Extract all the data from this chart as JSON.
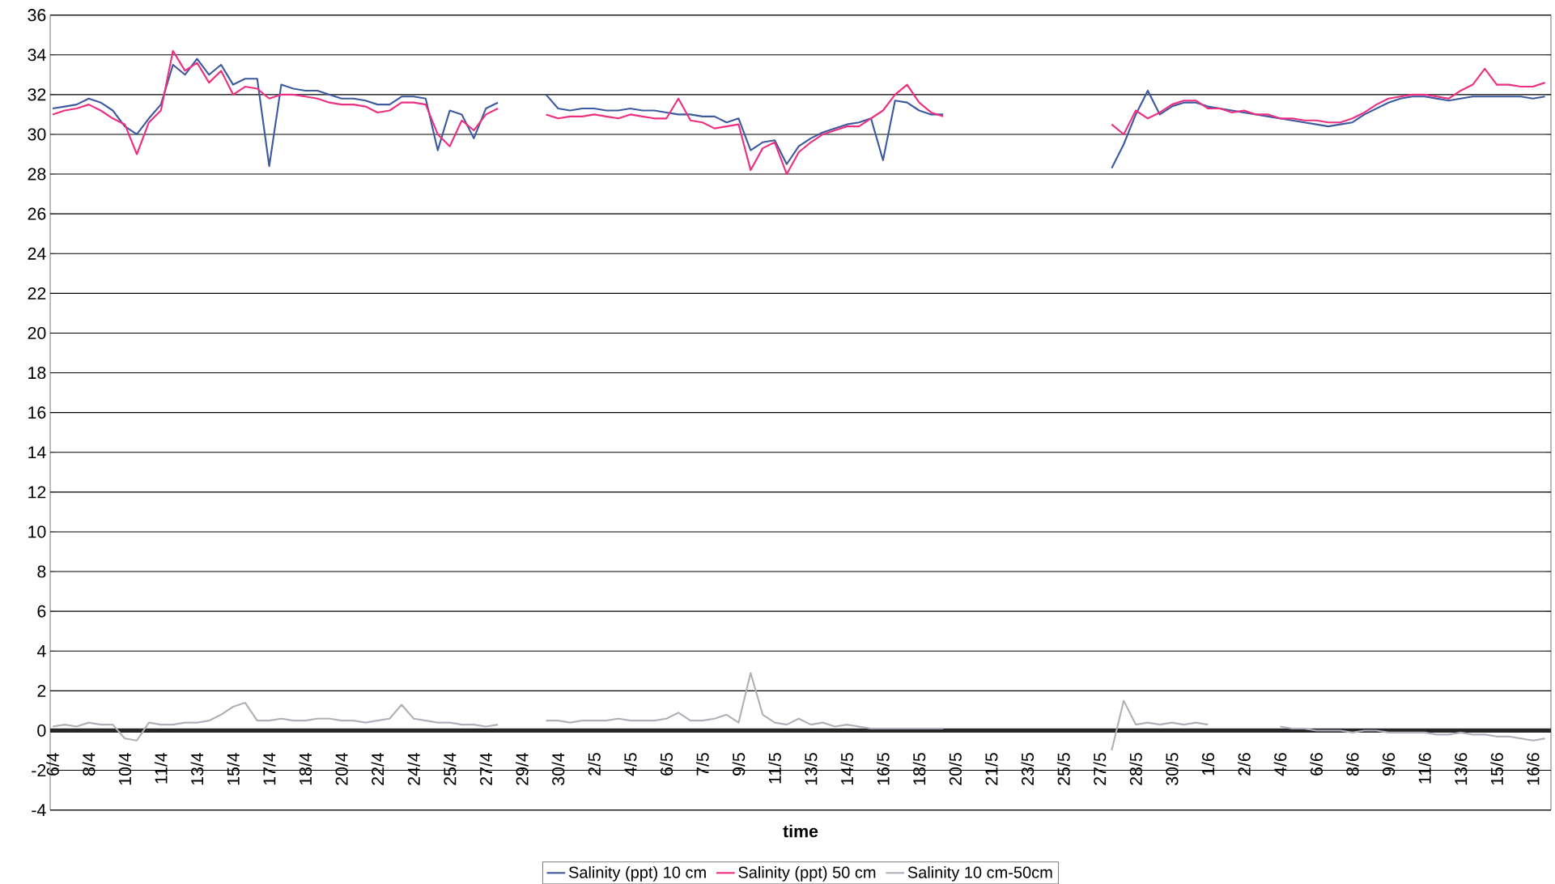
{
  "chart_data": {
    "type": "line",
    "xlabel": "time",
    "categories": [
      "6/4",
      null,
      null,
      "8/4",
      null,
      null,
      "10/4",
      null,
      null,
      "11/4",
      null,
      null,
      "13/4",
      null,
      null,
      "15/4",
      null,
      null,
      "17/4",
      null,
      null,
      "18/4",
      null,
      null,
      "20/4",
      null,
      null,
      "22/4",
      null,
      null,
      "24/4",
      null,
      null,
      "25/4",
      null,
      null,
      "27/4",
      null,
      null,
      "29/4",
      null,
      null,
      "30/4",
      null,
      null,
      "2/5",
      null,
      null,
      "4/5",
      null,
      null,
      "6/5",
      null,
      null,
      "7/5",
      null,
      null,
      "9/5",
      null,
      null,
      "11/5",
      null,
      null,
      "13/5",
      null,
      null,
      "14/5",
      null,
      null,
      "16/5",
      null,
      null,
      "18/5",
      null,
      null,
      "20/5",
      null,
      null,
      "21/5",
      null,
      null,
      "23/5",
      null,
      null,
      "25/5",
      null,
      null,
      "27/5",
      null,
      null,
      "28/5",
      null,
      null,
      "30/5",
      null,
      null,
      "1/6",
      null,
      null,
      "2/6",
      null,
      null,
      "4/6",
      null,
      null,
      "6/6",
      null,
      null,
      "8/6",
      null,
      null,
      "9/6",
      null,
      null,
      "11/6",
      null,
      null,
      "13/6",
      null,
      null,
      "15/6",
      null,
      null,
      "16/6",
      null
    ],
    "series": [
      {
        "name": "Salinity (ppt) 10 cm",
        "color": "#3d5a9e",
        "values": [
          31.3,
          31.4,
          31.5,
          31.8,
          31.6,
          31.2,
          30.4,
          30.0,
          30.8,
          31.5,
          33.5,
          33.0,
          33.8,
          33.0,
          33.5,
          32.5,
          32.8,
          32.8,
          28.4,
          32.5,
          32.3,
          32.2,
          32.2,
          32.0,
          31.8,
          31.8,
          31.7,
          31.5,
          31.5,
          31.9,
          31.9,
          31.8,
          29.2,
          31.2,
          31.0,
          29.8,
          31.3,
          31.6,
          null,
          null,
          null,
          32.0,
          31.3,
          31.2,
          31.3,
          31.3,
          31.2,
          31.2,
          31.3,
          31.2,
          31.2,
          31.1,
          31.0,
          31.0,
          30.9,
          30.9,
          30.6,
          30.8,
          29.2,
          29.6,
          29.7,
          28.5,
          29.4,
          29.8,
          30.1,
          30.3,
          30.5,
          30.6,
          30.8,
          28.7,
          31.7,
          31.6,
          31.2,
          31.0,
          31.0,
          null,
          null,
          null,
          null,
          null,
          null,
          null,
          null,
          null,
          null,
          null,
          null,
          null,
          28.3,
          29.5,
          31.0,
          32.2,
          31.0,
          31.4,
          31.6,
          31.6,
          31.4,
          31.3,
          31.2,
          31.1,
          31.0,
          30.9,
          30.8,
          30.7,
          30.6,
          30.5,
          30.4,
          30.5,
          30.6,
          31.0,
          31.3,
          31.6,
          31.8,
          31.9,
          31.9,
          31.8,
          31.7,
          31.8,
          31.9,
          31.9,
          31.9,
          31.9,
          31.9,
          31.8,
          31.9
        ]
      },
      {
        "name": "Salinity (ppt) 50 cm",
        "color": "#ec2f80",
        "values": [
          31.0,
          31.2,
          31.3,
          31.5,
          31.2,
          30.8,
          30.5,
          29.0,
          30.6,
          31.2,
          34.2,
          33.2,
          33.6,
          32.6,
          33.2,
          32.0,
          32.4,
          32.3,
          31.8,
          32.0,
          32.0,
          31.9,
          31.8,
          31.6,
          31.5,
          31.5,
          31.4,
          31.1,
          31.2,
          31.6,
          31.6,
          31.5,
          30.0,
          29.4,
          30.7,
          30.2,
          31.0,
          31.3,
          null,
          null,
          null,
          31.0,
          30.8,
          30.9,
          30.9,
          31.0,
          30.9,
          30.8,
          31.0,
          30.9,
          30.8,
          30.8,
          31.8,
          30.7,
          30.6,
          30.3,
          30.4,
          30.5,
          28.2,
          29.3,
          29.6,
          28.0,
          29.1,
          29.6,
          30.0,
          30.2,
          30.4,
          30.4,
          30.8,
          31.2,
          32.0,
          32.5,
          31.6,
          31.1,
          30.9,
          null,
          null,
          null,
          null,
          null,
          null,
          null,
          null,
          null,
          null,
          null,
          null,
          null,
          30.5,
          30.0,
          31.2,
          30.8,
          31.1,
          31.5,
          31.7,
          31.7,
          31.3,
          31.3,
          31.1,
          31.2,
          31.0,
          31.0,
          30.8,
          30.8,
          30.7,
          30.7,
          30.6,
          30.6,
          30.8,
          31.1,
          31.5,
          31.8,
          31.9,
          32.0,
          32.0,
          31.9,
          31.8,
          32.2,
          32.5,
          33.3,
          32.5,
          32.5,
          32.4,
          32.4,
          32.6
        ]
      },
      {
        "name": "Salinity 10 cm-50cm",
        "color": "#b0b0b8",
        "values": [
          0.2,
          0.3,
          0.2,
          0.4,
          0.3,
          0.3,
          -0.4,
          -0.5,
          0.4,
          0.3,
          0.3,
          0.4,
          0.4,
          0.5,
          0.8,
          1.2,
          1.4,
          0.5,
          0.5,
          0.6,
          0.5,
          0.5,
          0.6,
          0.6,
          0.5,
          0.5,
          0.4,
          0.5,
          0.6,
          1.3,
          0.6,
          0.5,
          0.4,
          0.4,
          0.3,
          0.3,
          0.2,
          0.3,
          null,
          null,
          null,
          0.5,
          0.5,
          0.4,
          0.5,
          0.5,
          0.5,
          0.6,
          0.5,
          0.5,
          0.5,
          0.6,
          0.9,
          0.5,
          0.5,
          0.6,
          0.8,
          0.4,
          2.9,
          0.8,
          0.4,
          0.3,
          0.6,
          0.3,
          0.4,
          0.2,
          0.3,
          0.2,
          0.1,
          0.1,
          0.1,
          0.1,
          0.1,
          0.1,
          0.1,
          null,
          null,
          null,
          null,
          null,
          null,
          null,
          null,
          null,
          null,
          null,
          null,
          null,
          -1.0,
          1.5,
          0.3,
          0.4,
          0.3,
          0.4,
          0.3,
          0.4,
          0.3,
          null,
          null,
          null,
          null,
          null,
          0.2,
          0.1,
          0.1,
          0.0,
          0.0,
          0.0,
          -0.1,
          0.0,
          0.0,
          -0.1,
          -0.1,
          -0.1,
          -0.1,
          -0.2,
          -0.2,
          -0.1,
          -0.2,
          -0.2,
          -0.3,
          -0.3,
          -0.4,
          -0.5,
          -0.4
        ]
      }
    ],
    "ylim": [
      -4,
      36
    ],
    "yticks": [
      -4,
      -2,
      0,
      2,
      4,
      6,
      8,
      10,
      12,
      14,
      16,
      18,
      20,
      22,
      24,
      26,
      28,
      30,
      32,
      34,
      36
    ],
    "grid": "y",
    "legend": "bottom",
    "marker": "none",
    "line_style": "solid"
  }
}
